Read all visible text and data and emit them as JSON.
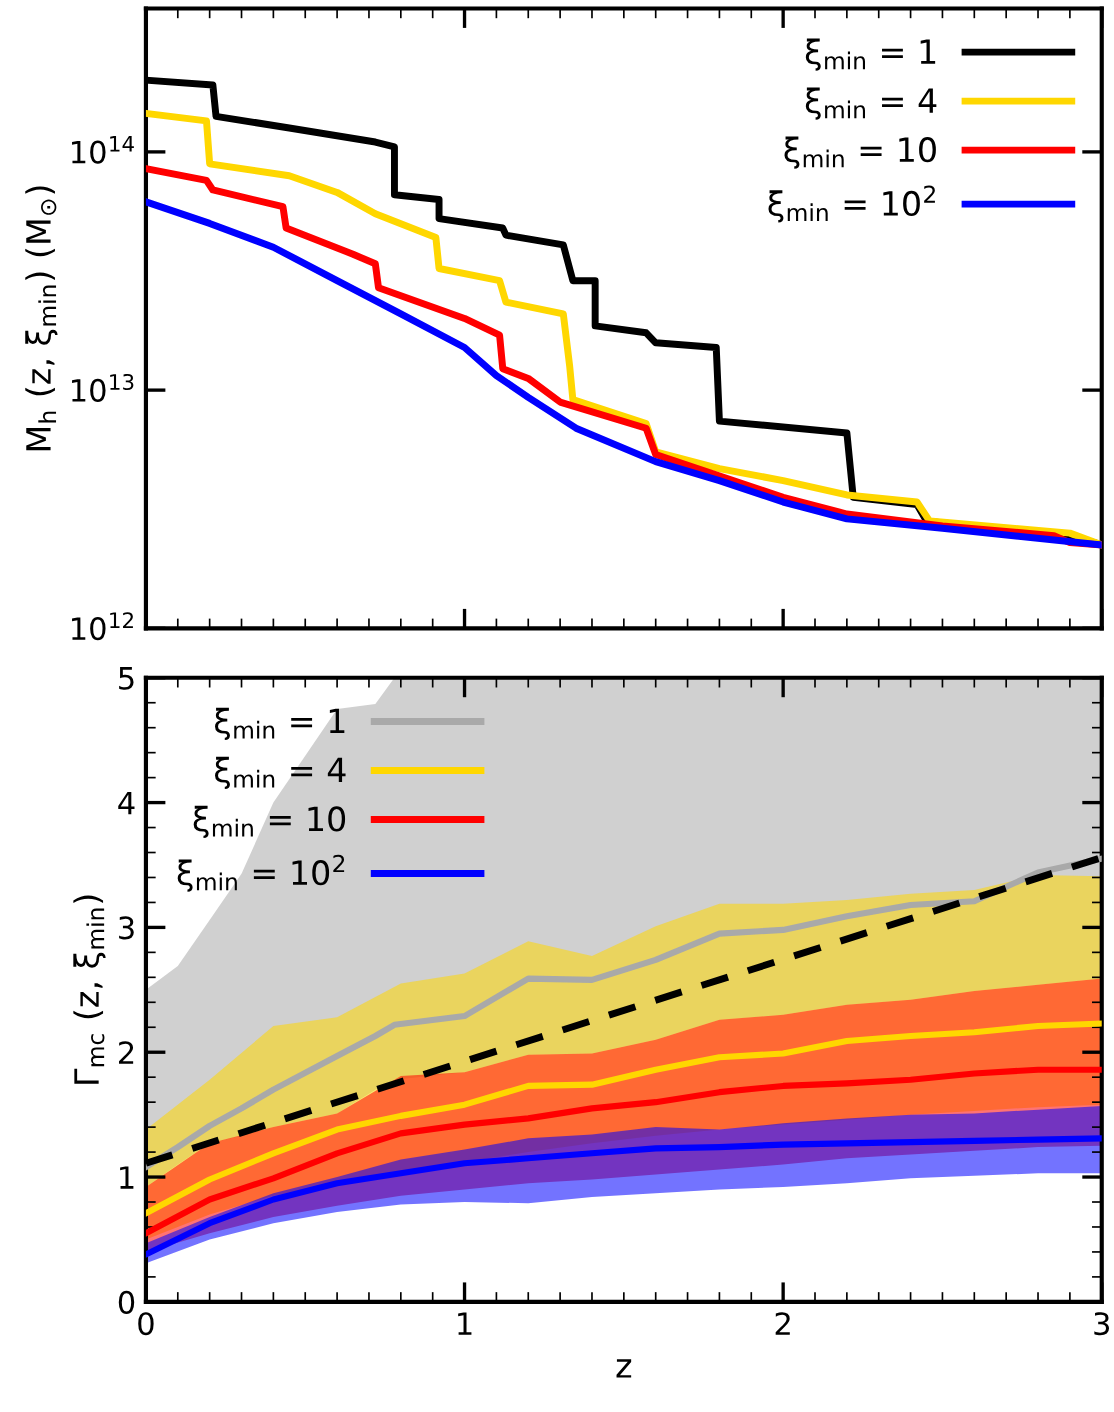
{
  "chart_data": [
    {
      "type": "line",
      "ylabel": "M$_{h}$ (z, ξ$_{min}$) (M$_{⊙}$)",
      "log": "y",
      "xlim": [
        0,
        3
      ],
      "xticks": [
        {
          "value": 0,
          "label": null
        },
        {
          "value": 1,
          "label": null
        },
        {
          "value": 2,
          "label": null
        },
        {
          "value": 3,
          "label": null
        }
      ],
      "ylim": [
        1000000000000.0,
        400000000000000.0
      ],
      "yticks": [
        {
          "value": 1000000000000.0,
          "label": "10$^{12}$"
        },
        {
          "value": 10000000000000.0,
          "label": "10$^{13}$"
        },
        {
          "value": 100000000000000.0,
          "label": "10$^{14}$"
        }
      ],
      "tick_labels": "y",
      "legend": "top right",
      "grid": false,
      "series": [
        {
          "name": "ξ$_{min}$ = 1",
          "color": "#000000",
          "x": [
            0,
            0.21,
            0.22,
            0.45,
            0.72,
            0.78,
            0.78,
            0.92,
            0.92,
            1.12,
            1.13,
            1.31,
            1.34,
            1.41,
            1.41,
            1.57,
            1.6,
            1.79,
            1.8,
            2.2,
            2.22,
            2.42,
            2.45,
            2.9,
            3.0
          ],
          "values": [
            200000000000000.0,
            191000000000000.0,
            141000000000000.0,
            126000000000000.0,
            110000000000000.0,
            105000000000000.0,
            66100000000000.0,
            63100000000000.0,
            52500000000000.0,
            47900000000000.0,
            44700000000000.0,
            40700000000000.0,
            28800000000000.0,
            28800000000000.0,
            18600000000000.0,
            17400000000000.0,
            15800000000000.0,
            15100000000000.0,
            7410000000000.0,
            6610000000000.0,
            3550000000000.0,
            3310000000000.0,
            2820000000000.0,
            2450000000000.0,
            2240000000000.0
          ]
        },
        {
          "name": "ξ$_{min}$ = 4",
          "color": "#ffd700",
          "x": [
            0,
            0.19,
            0.2,
            0.45,
            0.6,
            0.72,
            0.91,
            0.92,
            1.11,
            1.13,
            1.31,
            1.33,
            1.34,
            1.57,
            1.6,
            1.8,
            2.0,
            2.2,
            2.42,
            2.46,
            2.9,
            3.0
          ],
          "values": [
            145000000000000.0,
            135000000000000.0,
            89100000000000.0,
            79400000000000.0,
            67600000000000.0,
            55000000000000.0,
            43700000000000.0,
            32400000000000.0,
            28800000000000.0,
            23400000000000.0,
            20900000000000.0,
            12600000000000.0,
            9120000000000.0,
            7240000000000.0,
            5500000000000.0,
            4680000000000.0,
            4170000000000.0,
            3630000000000.0,
            3390000000000.0,
            2820000000000.0,
            2510000000000.0,
            2240000000000.0
          ]
        },
        {
          "name": "ξ$_{min}$ = 10",
          "color": "#ff0000",
          "x": [
            0,
            0.19,
            0.21,
            0.43,
            0.44,
            0.65,
            0.72,
            0.73,
            1.0,
            1.11,
            1.12,
            1.2,
            1.3,
            1.57,
            1.6,
            2.0,
            2.2,
            2.5,
            2.85,
            2.9,
            3.0
          ],
          "values": [
            85100000000000.0,
            75900000000000.0,
            69200000000000.0,
            58900000000000.0,
            47900000000000.0,
            37200000000000.0,
            33900000000000.0,
            26900000000000.0,
            20000000000000.0,
            17000000000000.0,
            12300000000000.0,
            11200000000000.0,
            8910000000000.0,
            6920000000000.0,
            5370000000000.0,
            3550000000000.0,
            3020000000000.0,
            2690000000000.0,
            2450000000000.0,
            2290000000000.0,
            2240000000000.0
          ]
        },
        {
          "name": "ξ$_{min}$ = 10$^{2}$",
          "color": "#0000ff",
          "x": [
            0,
            0.2,
            0.4,
            0.6,
            0.8,
            1.0,
            1.1,
            1.2,
            1.35,
            1.6,
            1.8,
            2.0,
            2.2,
            2.5,
            3.0
          ],
          "values": [
            61700000000000.0,
            50100000000000.0,
            39800000000000.0,
            28800000000000.0,
            20900000000000.0,
            15100000000000.0,
            11500000000000.0,
            9330000000000.0,
            6920000000000.0,
            5010000000000.0,
            4170000000000.0,
            3390000000000.0,
            2880000000000.0,
            2630000000000.0,
            2240000000000.0
          ]
        }
      ]
    },
    {
      "type": "line",
      "xlabel": "z",
      "ylabel": "Γ$_{mc}$ (z, ξ$_{min}$)",
      "xlim": [
        0,
        3
      ],
      "xticks": [
        0,
        1,
        2,
        3
      ],
      "ylim": [
        0,
        5
      ],
      "yticks": [
        0,
        1,
        2,
        3,
        4,
        5
      ],
      "legend": "top left",
      "grid": false,
      "x": [
        0,
        0.2,
        0.4,
        0.6,
        0.8,
        1.0,
        1.2,
        1.4,
        1.6,
        1.8,
        2.0,
        2.2,
        2.4,
        2.6,
        2.8,
        3.0
      ],
      "series": [
        {
          "name": "ξ$_{min}$ = 1",
          "color": "#a9a9a9",
          "x": [
            0,
            0.1,
            0.2,
            0.3,
            0.4,
            0.6,
            0.72,
            0.78,
            1.0,
            1.2,
            1.4,
            1.6,
            1.8,
            2.0,
            2.2,
            2.4,
            2.6,
            2.8,
            3.0
          ],
          "values": [
            1.08,
            1.24,
            1.41,
            1.55,
            1.7,
            1.97,
            2.13,
            2.22,
            2.29,
            2.59,
            2.58,
            2.74,
            2.95,
            2.98,
            3.09,
            3.18,
            3.21,
            3.44,
            3.55
          ],
          "lower": [
            0.92,
            1.1,
            1.27,
            1.33,
            1.4,
            1.51,
            1.7,
            1.78,
            1.84,
            1.98,
            1.99,
            2.1,
            2.26,
            2.3,
            2.38,
            2.42,
            2.49,
            2.54,
            2.59
          ],
          "upper": [
            2.5,
            2.69,
            3.06,
            3.43,
            4.0,
            4.75,
            4.79,
            5,
            5,
            5,
            5,
            5,
            5,
            5,
            5,
            5,
            5,
            5,
            5
          ]
        },
        {
          "name": "ξ$_{min}$ = 4",
          "color": "#ffd700",
          "values": [
            0.71,
            0.98,
            1.19,
            1.38,
            1.49,
            1.58,
            1.73,
            1.74,
            1.86,
            1.96,
            1.99,
            2.09,
            2.13,
            2.16,
            2.21,
            2.23
          ],
          "lower": [
            0.5,
            0.7,
            0.85,
            0.95,
            1.05,
            1.12,
            1.2,
            1.27,
            1.33,
            1.38,
            1.42,
            1.46,
            1.5,
            1.53,
            1.56,
            1.58
          ],
          "upper": [
            1.38,
            1.78,
            2.21,
            2.28,
            2.55,
            2.63,
            2.89,
            2.77,
            3.01,
            3.19,
            3.19,
            3.22,
            3.27,
            3.3,
            3.42,
            3.41
          ]
        },
        {
          "name": "ξ$_{min}$ = 10",
          "color": "#ff0000",
          "values": [
            0.55,
            0.82,
            0.99,
            1.19,
            1.35,
            1.42,
            1.47,
            1.55,
            1.6,
            1.68,
            1.73,
            1.75,
            1.78,
            1.83,
            1.86,
            1.86
          ],
          "lower": [
            0.4,
            0.55,
            0.68,
            0.77,
            0.85,
            0.9,
            0.95,
            0.98,
            1.02,
            1.06,
            1.1,
            1.15,
            1.18,
            1.21,
            1.24,
            1.25
          ],
          "upper": [
            0.92,
            1.27,
            1.4,
            1.51,
            1.81,
            1.84,
            1.98,
            1.99,
            2.1,
            2.26,
            2.3,
            2.38,
            2.42,
            2.49,
            2.54,
            2.59
          ]
        },
        {
          "name": "ξ$_{min}$ = 10$^{2}$",
          "color": "#0000ff",
          "values": [
            0.38,
            0.63,
            0.82,
            0.95,
            1.03,
            1.11,
            1.15,
            1.19,
            1.23,
            1.24,
            1.26,
            1.27,
            1.28,
            1.29,
            1.3,
            1.31
          ],
          "lower": [
            0.31,
            0.5,
            0.63,
            0.72,
            0.78,
            0.8,
            0.79,
            0.84,
            0.87,
            0.9,
            0.92,
            0.95,
            0.99,
            1.01,
            1.03,
            1.03
          ],
          "upper": [
            0.47,
            0.68,
            0.87,
            1.0,
            1.14,
            1.22,
            1.31,
            1.34,
            1.4,
            1.38,
            1.43,
            1.47,
            1.5,
            1.51,
            1.54,
            1.57
          ]
        },
        {
          "type": "line",
          "color": "#000000",
          "line_style": "dashed",
          "x": [
            0,
            3
          ],
          "values": [
            1.11,
            3.56
          ]
        }
      ]
    }
  ]
}
